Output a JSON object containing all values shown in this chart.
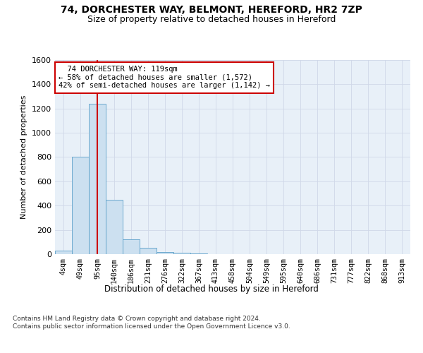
{
  "title_line1": "74, DORCHESTER WAY, BELMONT, HEREFORD, HR2 7ZP",
  "title_line2": "Size of property relative to detached houses in Hereford",
  "xlabel": "Distribution of detached houses by size in Hereford",
  "ylabel": "Number of detached properties",
  "footnote": "Contains HM Land Registry data © Crown copyright and database right 2024.\nContains public sector information licensed under the Open Government Licence v3.0.",
  "bins": [
    "4sqm",
    "49sqm",
    "95sqm",
    "140sqm",
    "186sqm",
    "231sqm",
    "276sqm",
    "322sqm",
    "367sqm",
    "413sqm",
    "458sqm",
    "504sqm",
    "549sqm",
    "595sqm",
    "640sqm",
    "686sqm",
    "731sqm",
    "777sqm",
    "822sqm",
    "868sqm",
    "913sqm"
  ],
  "bar_heights": [
    30,
    800,
    1240,
    450,
    120,
    50,
    20,
    10,
    5,
    0,
    0,
    0,
    0,
    0,
    0,
    0,
    0,
    0,
    0,
    0,
    0
  ],
  "bar_color": "#cce0f0",
  "bar_edge_color": "#5a9fc8",
  "grid_color": "#d0d8e8",
  "vline_color": "#cc0000",
  "annotation_box_text": "  74 DORCHESTER WAY: 119sqm\n← 58% of detached houses are smaller (1,572)\n42% of semi-detached houses are larger (1,142) →",
  "annotation_box_color": "#cc0000",
  "ylim": [
    0,
    1600
  ],
  "yticks": [
    0,
    200,
    400,
    600,
    800,
    1000,
    1200,
    1400,
    1600
  ],
  "bg_color": "#e8f0f8",
  "title1_fontsize": 10,
  "title2_fontsize": 9
}
